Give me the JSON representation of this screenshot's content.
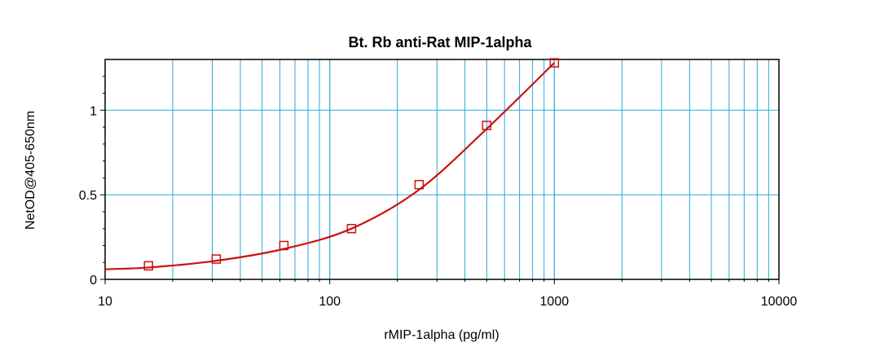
{
  "chart_data": {
    "type": "scatter",
    "title": "Bt. Rb anti-Rat MIP-1alpha",
    "xlabel": "rMIP-1alpha (pg/ml)",
    "ylabel": "NetOD@405-650nm",
    "x_scale": "log",
    "xlim": [
      10,
      10000
    ],
    "ylim": [
      0,
      1.3
    ],
    "x_ticks": [
      10,
      100,
      1000,
      10000
    ],
    "x_tick_labels": [
      "10",
      "100",
      "1000",
      "10000"
    ],
    "y_ticks": [
      0,
      0.5,
      1
    ],
    "y_tick_labels": [
      "0",
      "0.5",
      "1"
    ],
    "grid": true,
    "series": [
      {
        "marker": "square",
        "x": [
          15.6,
          31.25,
          62.5,
          125,
          250,
          500,
          1000
        ],
        "y": [
          0.08,
          0.12,
          0.2,
          0.3,
          0.56,
          0.91,
          1.28
        ]
      }
    ],
    "fit_curve": {
      "x": [
        10,
        15.6,
        31.25,
        62.5,
        125,
        250,
        500,
        1000
      ],
      "y": [
        0.06,
        0.07,
        0.11,
        0.18,
        0.3,
        0.53,
        0.89,
        1.28
      ]
    },
    "colors": {
      "grid": "#29a9d8",
      "series": "#cc1111",
      "frame": "#000000"
    }
  }
}
